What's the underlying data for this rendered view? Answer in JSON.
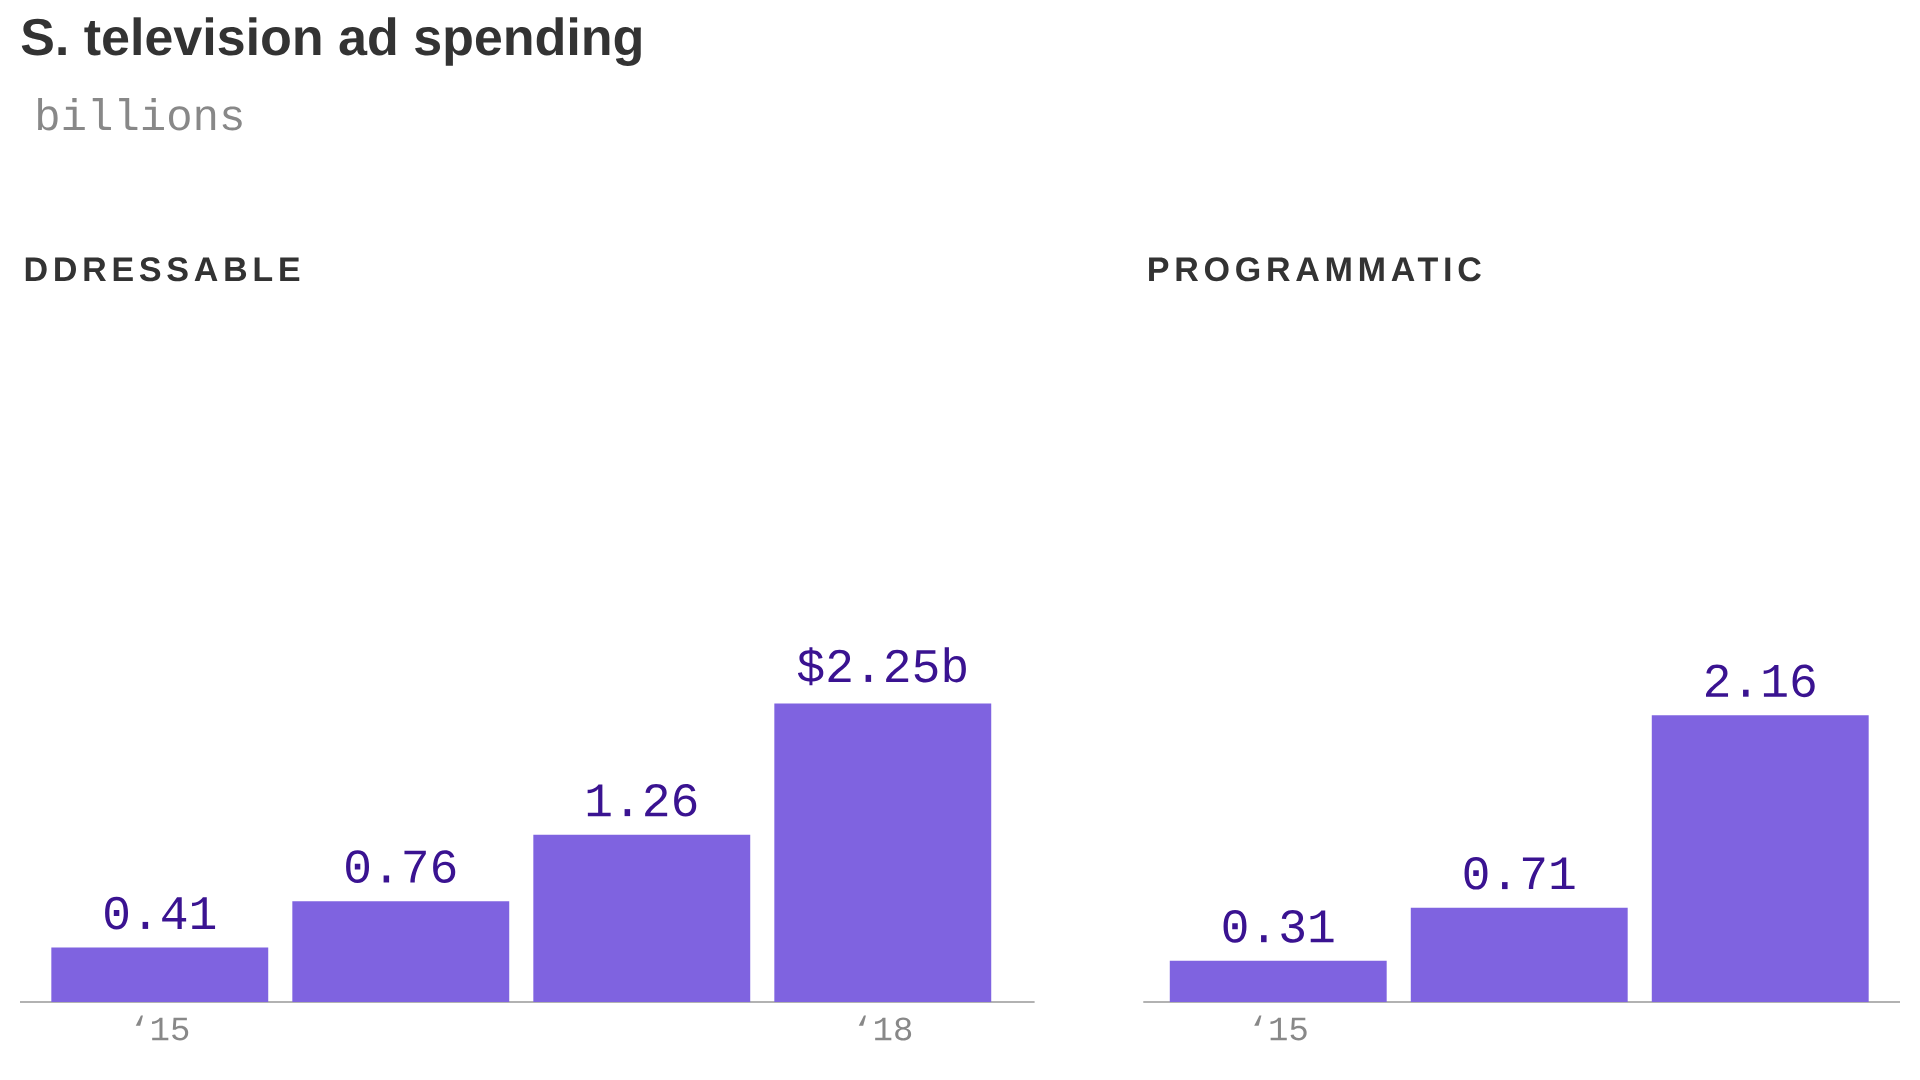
{
  "chart_data": [
    {
      "type": "other",
      "title": "S. television ad spending",
      "subtitle": "billions"
    },
    {
      "type": "bar",
      "title": "DDRESSABLE",
      "categories": [
        "‘15",
        null,
        null,
        "‘18"
      ],
      "values": [
        0.41,
        0.76,
        1.26,
        2.25
      ],
      "value_labels": [
        "0.41",
        "0.76",
        "1.26",
        "$2.25b"
      ],
      "color": "#7f63e0",
      "tick_labels": "x"
    },
    {
      "type": "bar",
      "title": "PROGRAMMATIC",
      "categories": [
        "‘15",
        null,
        null
      ],
      "values": [
        0.31,
        0.71,
        2.16
      ],
      "data_labels": true,
      "color": "#7f63e0",
      "tick_labels": "x"
    }
  ]
}
